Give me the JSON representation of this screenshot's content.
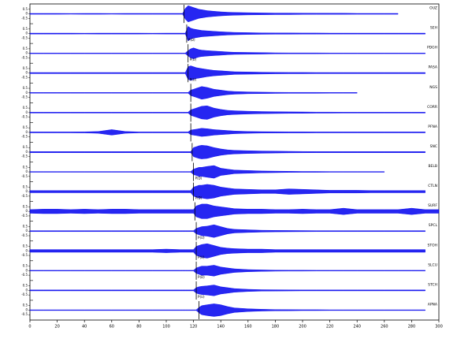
{
  "chart_data": {
    "type": "seismogram",
    "xlim": [
      0,
      300
    ],
    "xticks": [
      0,
      20,
      40,
      60,
      80,
      100,
      120,
      140,
      160,
      180,
      200,
      220,
      240,
      260,
      280,
      300
    ],
    "ylim": [
      -1,
      1
    ],
    "yticks": [
      0.5,
      0,
      -0.5
    ],
    "color": "#0000ee",
    "x": [
      0,
      10,
      20,
      30,
      40,
      50,
      60,
      70,
      80,
      90,
      100,
      110,
      112,
      114,
      116,
      118,
      120,
      122,
      124,
      126,
      130,
      135,
      140,
      145,
      150,
      160,
      170,
      180,
      190,
      200,
      210,
      220,
      230,
      240,
      250,
      260,
      270,
      280,
      290,
      300
    ],
    "series": [
      {
        "name": "OUZ",
        "pick": 113,
        "values": [
          0.05,
          0.05,
          0.05,
          0.04,
          0.05,
          0.05,
          0.04,
          0.05,
          0.05,
          0.05,
          0.05,
          0.05,
          0.05,
          0.6,
          0.9,
          0.8,
          0.7,
          0.6,
          0.5,
          0.45,
          0.35,
          0.28,
          0.22,
          0.18,
          0.15,
          0.12,
          0.1,
          0.08,
          0.08,
          0.07,
          0.06,
          0.06,
          0.06,
          0.05,
          0.05,
          0.05,
          0.05,
          null,
          null,
          null
        ]
      },
      {
        "name": "SEH",
        "pick": 115,
        "pick_label": "P(D)",
        "values": [
          0.05,
          0.05,
          0.05,
          0.05,
          0.04,
          0.05,
          0.05,
          0.05,
          0.05,
          0.04,
          0.05,
          0.05,
          0.05,
          0.05,
          0.8,
          0.6,
          0.5,
          0.45,
          0.4,
          0.35,
          0.3,
          0.25,
          0.2,
          0.16,
          0.13,
          0.1,
          0.08,
          0.07,
          0.07,
          0.06,
          0.06,
          0.05,
          0.05,
          0.05,
          0.05,
          0.05,
          0.05,
          0.05,
          0.05,
          null
        ]
      },
      {
        "name": "PDGH",
        "pick": 116,
        "pick_label": "P(U)",
        "values": [
          0.04,
          0.04,
          0.04,
          0.04,
          0.04,
          0.04,
          0.04,
          0.04,
          0.04,
          0.04,
          0.04,
          0.04,
          0.04,
          0.04,
          0.3,
          0.5,
          0.6,
          0.5,
          0.4,
          0.35,
          0.3,
          0.25,
          0.2,
          0.15,
          0.12,
          0.1,
          0.08,
          0.06,
          0.05,
          0.05,
          0.05,
          0.04,
          0.04,
          0.04,
          0.04,
          0.04,
          0.04,
          0.04,
          0.04,
          null
        ]
      },
      {
        "name": "PASA",
        "pick": 116,
        "pick_label": "P(U)",
        "values": [
          0.06,
          0.06,
          0.06,
          0.06,
          0.06,
          0.06,
          0.06,
          0.06,
          0.06,
          0.06,
          0.06,
          0.06,
          0.06,
          0.06,
          0.7,
          0.8,
          0.7,
          0.6,
          0.55,
          0.5,
          0.4,
          0.3,
          0.25,
          0.2,
          0.15,
          0.12,
          0.1,
          0.08,
          0.07,
          0.07,
          0.06,
          0.06,
          0.06,
          0.06,
          0.06,
          0.06,
          0.06,
          0.06,
          0.06,
          null
        ]
      },
      {
        "name": "NGS",
        "pick": 118,
        "values": [
          0.04,
          0.04,
          0.04,
          0.04,
          0.04,
          0.04,
          0.04,
          0.04,
          0.04,
          0.04,
          0.04,
          0.04,
          0.04,
          0.04,
          0.04,
          0.3,
          0.4,
          0.5,
          0.6,
          0.7,
          0.6,
          0.4,
          0.3,
          0.2,
          0.15,
          0.1,
          0.08,
          0.06,
          0.05,
          0.05,
          0.05,
          0.04,
          0.04,
          0.04,
          null,
          null,
          null,
          null,
          null,
          null
        ]
      },
      {
        "name": "CORR",
        "pick": 118,
        "values": [
          0.05,
          0.05,
          0.05,
          0.05,
          0.05,
          0.05,
          0.05,
          0.05,
          0.05,
          0.05,
          0.05,
          0.05,
          0.05,
          0.05,
          0.05,
          0.3,
          0.4,
          0.5,
          0.6,
          0.7,
          0.75,
          0.5,
          0.35,
          0.25,
          0.2,
          0.15,
          0.12,
          0.1,
          0.08,
          0.07,
          0.06,
          0.06,
          0.05,
          0.05,
          0.05,
          0.05,
          0.05,
          0.05,
          0.05,
          null
        ]
      },
      {
        "name": "PFNA",
        "pick": 118,
        "values": [
          0.05,
          0.05,
          0.05,
          0.05,
          0.06,
          0.1,
          0.3,
          0.1,
          0.05,
          0.05,
          0.05,
          0.05,
          0.05,
          0.05,
          0.05,
          0.25,
          0.3,
          0.35,
          0.4,
          0.45,
          0.4,
          0.3,
          0.25,
          0.2,
          0.15,
          0.1,
          0.08,
          0.07,
          0.06,
          0.06,
          0.05,
          0.05,
          0.05,
          0.05,
          0.05,
          0.05,
          0.05,
          0.05,
          0.05,
          null
        ]
      },
      {
        "name": "SNC",
        "pick": 119,
        "values": [
          0.06,
          0.06,
          0.06,
          0.06,
          0.06,
          0.06,
          0.06,
          0.06,
          0.06,
          0.06,
          0.06,
          0.06,
          0.06,
          0.06,
          0.06,
          0.06,
          0.5,
          0.6,
          0.7,
          0.75,
          0.7,
          0.5,
          0.35,
          0.25,
          0.2,
          0.15,
          0.12,
          0.1,
          0.08,
          0.07,
          0.06,
          0.06,
          0.06,
          0.06,
          0.06,
          0.06,
          0.06,
          0.06,
          0.06,
          null
        ]
      },
      {
        "name": "BELB",
        "pick": 120,
        "pick_label": "P(D)",
        "values": [
          0.04,
          0.04,
          0.04,
          0.04,
          0.04,
          0.04,
          0.04,
          0.04,
          0.04,
          0.04,
          0.04,
          0.04,
          0.04,
          0.04,
          0.04,
          0.04,
          0.3,
          0.4,
          0.5,
          0.5,
          0.6,
          0.7,
          0.4,
          0.3,
          0.2,
          0.15,
          0.1,
          0.08,
          0.06,
          0.05,
          0.05,
          0.04,
          0.04,
          0.04,
          0.04,
          0.04,
          null,
          null,
          null,
          null
        ]
      },
      {
        "name": "CTLN",
        "pick": 120,
        "pick_label": "P(D)",
        "values": [
          0.12,
          0.12,
          0.12,
          0.12,
          0.12,
          0.12,
          0.12,
          0.12,
          0.12,
          0.12,
          0.12,
          0.12,
          0.12,
          0.12,
          0.12,
          0.12,
          0.5,
          0.6,
          0.7,
          0.7,
          0.8,
          0.7,
          0.5,
          0.4,
          0.3,
          0.25,
          0.2,
          0.2,
          0.3,
          0.25,
          0.2,
          0.15,
          0.15,
          0.15,
          0.12,
          0.12,
          0.12,
          0.12,
          0.12,
          null
        ]
      },
      {
        "name": "SURF",
        "pick": 121,
        "values": [
          0.2,
          0.25,
          0.25,
          0.2,
          0.25,
          0.2,
          0.25,
          0.25,
          0.2,
          0.2,
          0.2,
          0.2,
          0.2,
          0.2,
          0.2,
          0.2,
          0.2,
          0.6,
          0.7,
          0.8,
          0.8,
          0.6,
          0.5,
          0.4,
          0.3,
          0.25,
          0.25,
          0.2,
          0.2,
          0.25,
          0.2,
          0.2,
          0.35,
          0.2,
          0.2,
          0.2,
          0.2,
          0.35,
          0.2,
          0.2
        ]
      },
      {
        "name": "SPCL",
        "pick": 122,
        "pick_label": "P(U)",
        "values": [
          0.05,
          0.05,
          0.05,
          0.05,
          0.05,
          0.05,
          0.05,
          0.05,
          0.05,
          0.05,
          0.05,
          0.05,
          0.05,
          0.05,
          0.05,
          0.05,
          0.05,
          0.3,
          0.4,
          0.5,
          0.55,
          0.7,
          0.5,
          0.3,
          0.2,
          0.15,
          0.1,
          0.08,
          0.07,
          0.06,
          0.05,
          0.05,
          0.05,
          0.05,
          0.05,
          0.05,
          0.05,
          0.05,
          0.05,
          null
        ]
      },
      {
        "name": "STOH",
        "pick": 122,
        "pick_label": "P(U)",
        "values": [
          0.15,
          0.15,
          0.15,
          0.15,
          0.15,
          0.15,
          0.15,
          0.15,
          0.15,
          0.15,
          0.2,
          0.15,
          0.15,
          0.15,
          0.15,
          0.15,
          0.15,
          0.5,
          0.6,
          0.7,
          0.8,
          0.6,
          0.4,
          0.3,
          0.25,
          0.2,
          0.2,
          0.15,
          0.15,
          0.15,
          0.15,
          0.15,
          0.15,
          0.15,
          0.15,
          0.15,
          0.15,
          0.15,
          0.15,
          null
        ]
      },
      {
        "name": "SLCU",
        "pick": 122,
        "pick_label": "P(D)",
        "values": [
          0.04,
          0.04,
          0.04,
          0.04,
          0.04,
          0.04,
          0.04,
          0.04,
          0.04,
          0.04,
          0.04,
          0.04,
          0.04,
          0.04,
          0.04,
          0.04,
          0.04,
          0.3,
          0.4,
          0.5,
          0.5,
          0.6,
          0.4,
          0.3,
          0.2,
          0.12,
          0.08,
          0.06,
          0.05,
          0.05,
          0.04,
          0.04,
          0.04,
          0.04,
          0.04,
          0.04,
          0.04,
          0.04,
          0.04,
          null
        ]
      },
      {
        "name": "STCH",
        "pick": 122,
        "pick_label": "P(U)",
        "values": [
          0.05,
          0.05,
          0.05,
          0.05,
          0.05,
          0.05,
          0.05,
          0.05,
          0.05,
          0.05,
          0.05,
          0.05,
          0.05,
          0.05,
          0.05,
          0.05,
          0.05,
          0.3,
          0.4,
          0.45,
          0.5,
          0.6,
          0.4,
          0.3,
          0.2,
          0.12,
          0.08,
          0.07,
          0.06,
          0.05,
          0.05,
          0.05,
          0.05,
          0.05,
          0.05,
          0.05,
          0.05,
          0.05,
          0.05,
          null
        ]
      },
      {
        "name": "APNA",
        "pick": 124,
        "values": [
          0.04,
          0.04,
          0.04,
          0.04,
          0.04,
          0.04,
          0.04,
          0.04,
          0.04,
          0.04,
          0.04,
          0.04,
          0.04,
          0.04,
          0.04,
          0.04,
          0.04,
          0.04,
          0.3,
          0.5,
          0.6,
          0.7,
          0.6,
          0.4,
          0.25,
          0.15,
          0.1,
          0.07,
          0.06,
          0.05,
          0.05,
          0.04,
          0.04,
          0.04,
          0.04,
          0.04,
          0.04,
          0.04,
          0.04,
          null
        ]
      }
    ]
  }
}
